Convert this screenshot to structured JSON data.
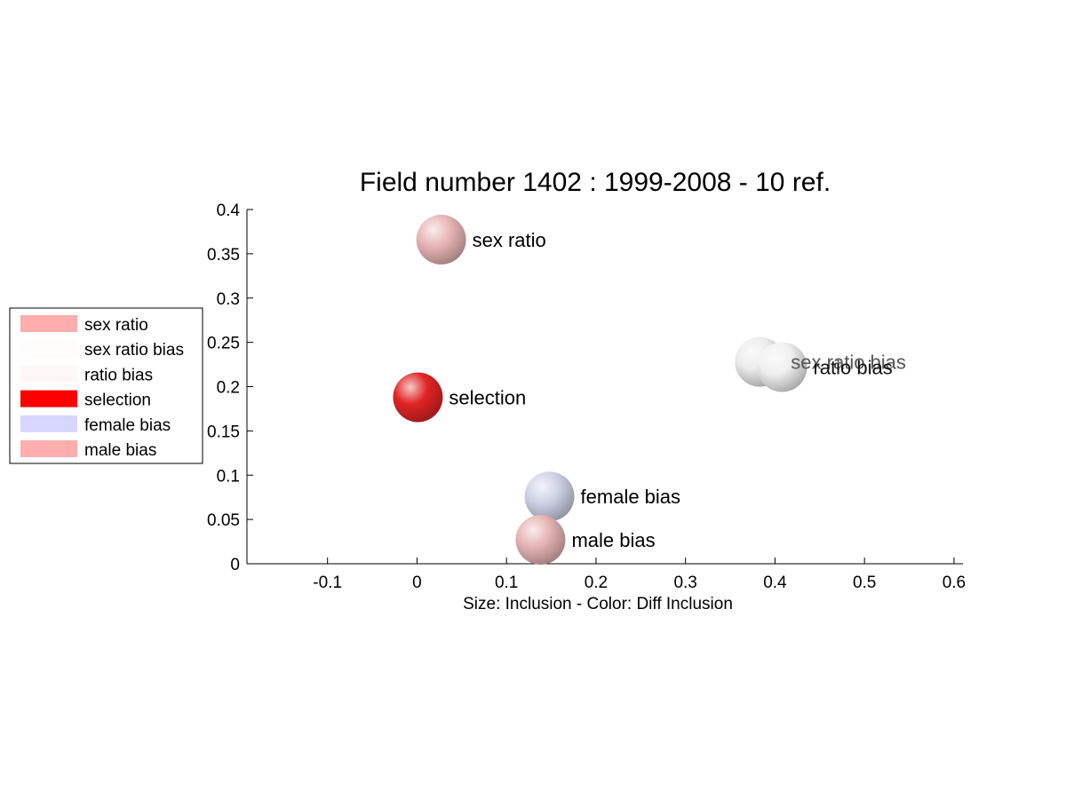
{
  "chart_data": {
    "type": "scatter",
    "title": "Field number 1402 : 1999-2008  - 10 ref.",
    "xlabel": "Size: Inclusion - Color: Diff Inclusion",
    "ylabel": "",
    "xlim": [
      -0.19,
      0.61
    ],
    "ylim": [
      0,
      0.4
    ],
    "xticks": [
      -0.1,
      0,
      0.1,
      0.2,
      0.3,
      0.4,
      0.5,
      0.6
    ],
    "yticks": [
      0,
      0.05,
      0.1,
      0.15,
      0.2,
      0.25,
      0.3,
      0.35,
      0.4
    ],
    "grid": false,
    "legend_position": "left",
    "points": [
      {
        "label": "sex ratio",
        "x": 0.027,
        "y": 0.366,
        "color": "#e8b5b5",
        "label_color": "#000000"
      },
      {
        "label": "sex ratio bias",
        "x": 0.383,
        "y": 0.228,
        "color": "#ececec",
        "label_color": "#555555"
      },
      {
        "label": "ratio bias",
        "x": 0.408,
        "y": 0.222,
        "color": "#f0f0f0",
        "label_color": "#111111"
      },
      {
        "label": "selection",
        "x": 0.001,
        "y": 0.188,
        "color": "#e02424",
        "label_color": "#000000"
      },
      {
        "label": "female bias",
        "x": 0.148,
        "y": 0.076,
        "color": "#cfd2e6",
        "label_color": "#000000"
      },
      {
        "label": "male bias",
        "x": 0.138,
        "y": 0.027,
        "color": "#e6b4b4",
        "label_color": "#000000"
      }
    ],
    "legend": [
      {
        "label": "sex ratio",
        "color": "#ffadad"
      },
      {
        "label": "sex ratio bias",
        "color": "#fffcfc"
      },
      {
        "label": "ratio bias",
        "color": "#fff7f5"
      },
      {
        "label": "selection",
        "color": "#ff0000"
      },
      {
        "label": "female bias",
        "color": "#d6d6ff"
      },
      {
        "label": "male bias",
        "color": "#ffadad"
      }
    ]
  }
}
